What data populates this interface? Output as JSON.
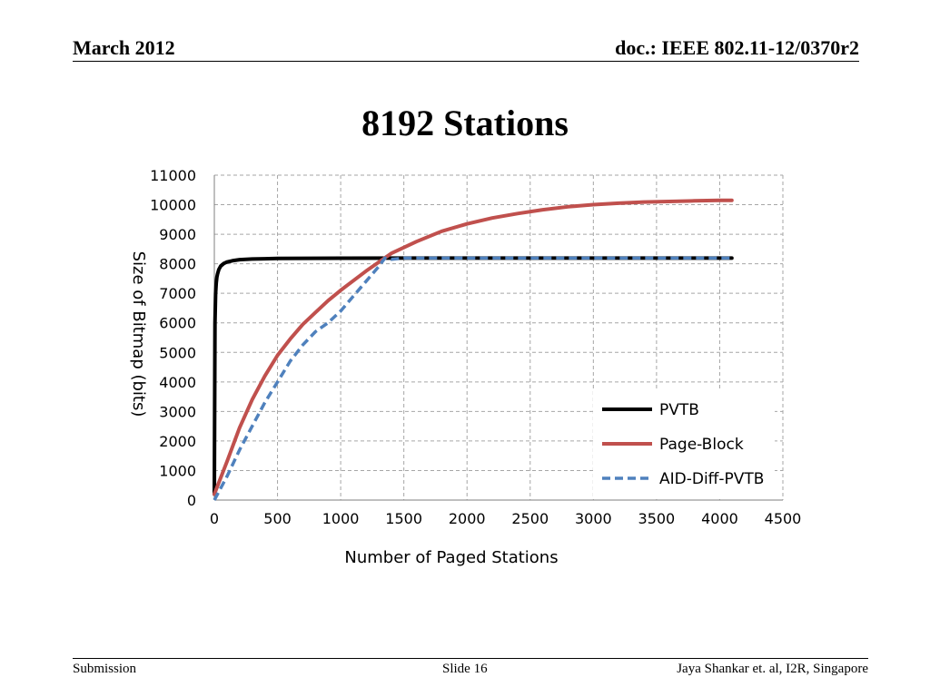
{
  "header": {
    "date": "March 2012",
    "doc": "doc.: IEEE 802.11-12/0370r2"
  },
  "slide_title": "8192 Stations",
  "footer": {
    "left": "Submission",
    "center": "Slide 16",
    "right": "Jaya Shankar et. al, I2R, Singapore"
  },
  "colors": {
    "pvtb": "#000000",
    "page_block": "#c0504d",
    "aid_diff": "#4f81bd",
    "grid": "#a6a6a6"
  },
  "chart_data": {
    "type": "line",
    "xlabel": "Number of Paged Stations",
    "ylabel": "Size of Bitmap (bits)",
    "xlim": [
      0,
      4500
    ],
    "ylim": [
      0,
      11000
    ],
    "xticks": [
      0,
      500,
      1000,
      1500,
      2000,
      2500,
      3000,
      3500,
      4000,
      4500
    ],
    "yticks": [
      0,
      1000,
      2000,
      3000,
      4000,
      5000,
      6000,
      7000,
      8000,
      9000,
      10000,
      11000
    ],
    "grid": true,
    "legend_position": "bottom-right",
    "series": [
      {
        "name": "PVTB",
        "style": "solid",
        "x": [
          0,
          5,
          10,
          15,
          20,
          25,
          35,
          50,
          75,
          100,
          150,
          200,
          300,
          400,
          500,
          1000,
          1500,
          2000,
          3000,
          4096
        ],
        "y": [
          200,
          6000,
          7000,
          7350,
          7550,
          7650,
          7800,
          7920,
          8010,
          8060,
          8110,
          8140,
          8160,
          8170,
          8180,
          8190,
          8192,
          8192,
          8192,
          8192
        ]
      },
      {
        "name": "Page-Block",
        "style": "solid",
        "x": [
          0,
          100,
          200,
          300,
          400,
          500,
          600,
          700,
          800,
          900,
          1000,
          1200,
          1400,
          1600,
          1800,
          2000,
          2200,
          2400,
          2600,
          2800,
          3000,
          3200,
          3400,
          3600,
          3800,
          4000,
          4096
        ],
        "y": [
          200,
          1300,
          2450,
          3400,
          4200,
          4900,
          5450,
          5950,
          6350,
          6750,
          7100,
          7750,
          8350,
          8750,
          9100,
          9350,
          9550,
          9700,
          9830,
          9930,
          10000,
          10050,
          10090,
          10110,
          10130,
          10150,
          10150
        ]
      },
      {
        "name": "AID-Diff-PVTB",
        "style": "dashed",
        "x": [
          0,
          100,
          200,
          300,
          400,
          500,
          600,
          700,
          800,
          900,
          1000,
          1100,
          1200,
          1300,
          1350,
          1400,
          1500,
          2000,
          2500,
          3000,
          3500,
          4096
        ],
        "y": [
          0,
          800,
          1700,
          2500,
          3300,
          4000,
          4700,
          5250,
          5700,
          6000,
          6400,
          6900,
          7400,
          7900,
          8192,
          8150,
          8192,
          8192,
          8192,
          8192,
          8192,
          8192
        ]
      }
    ]
  }
}
